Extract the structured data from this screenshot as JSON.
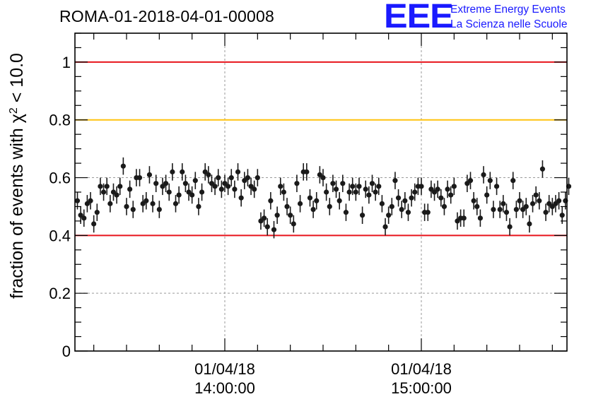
{
  "chart_data": {
    "type": "scatter",
    "title": "ROMA-01-2018-04-01-00008",
    "ylabel_main": "fraction of events with ",
    "ylabel_chi": "χ",
    "ylabel_sup": "2",
    "ylabel_tail": " < 10.0",
    "xlabel": "",
    "ylim": [
      0,
      1.1
    ],
    "x_unit": "minutes",
    "xlim": [
      -45,
      105
    ],
    "y_ticks": [
      "0",
      "0.2",
      "0.4",
      "0.6",
      "0.8",
      "1"
    ],
    "y_tick_values": [
      0,
      0.2,
      0.4,
      0.6,
      0.8,
      1.0
    ],
    "x_ticks": [
      {
        "x": 0,
        "date": "01/04/18",
        "time": "14:00:00"
      },
      {
        "x": 60,
        "date": "01/04/18",
        "time": "15:00:00"
      }
    ],
    "grid": true,
    "reference_lines": [
      {
        "y": 1.0,
        "color": "#e8141c"
      },
      {
        "y": 0.8,
        "color": "#ffc20e"
      },
      {
        "y": 0.4,
        "color": "#e8141c"
      }
    ],
    "marker_color": "#1a1a1a",
    "error": 0.03,
    "points": [
      {
        "x": -45,
        "y": 0.52
      },
      {
        "x": -44,
        "y": 0.47
      },
      {
        "x": -43,
        "y": 0.46
      },
      {
        "x": -42,
        "y": 0.51
      },
      {
        "x": -41,
        "y": 0.52
      },
      {
        "x": -40,
        "y": 0.44
      },
      {
        "x": -39,
        "y": 0.48
      },
      {
        "x": -38,
        "y": 0.57
      },
      {
        "x": -37,
        "y": 0.55
      },
      {
        "x": -36,
        "y": 0.57
      },
      {
        "x": -35,
        "y": 0.51
      },
      {
        "x": -34,
        "y": 0.55
      },
      {
        "x": -33,
        "y": 0.54
      },
      {
        "x": -32,
        "y": 0.57
      },
      {
        "x": -31,
        "y": 0.64
      },
      {
        "x": -30,
        "y": 0.5
      },
      {
        "x": -29,
        "y": 0.56
      },
      {
        "x": -28,
        "y": 0.49
      },
      {
        "x": -27,
        "y": 0.6
      },
      {
        "x": -26,
        "y": 0.6
      },
      {
        "x": -25,
        "y": 0.51
      },
      {
        "x": -24,
        "y": 0.52
      },
      {
        "x": -23,
        "y": 0.61
      },
      {
        "x": -22,
        "y": 0.51
      },
      {
        "x": -21,
        "y": 0.58
      },
      {
        "x": -20,
        "y": 0.49
      },
      {
        "x": -19,
        "y": 0.57
      },
      {
        "x": -18,
        "y": 0.58
      },
      {
        "x": -17,
        "y": 0.55
      },
      {
        "x": -16,
        "y": 0.62
      },
      {
        "x": -15,
        "y": 0.51
      },
      {
        "x": -14,
        "y": 0.54
      },
      {
        "x": -13,
        "y": 0.62
      },
      {
        "x": -12,
        "y": 0.58
      },
      {
        "x": -11,
        "y": 0.55
      },
      {
        "x": -10,
        "y": 0.54
      },
      {
        "x": -9,
        "y": 0.59
      },
      {
        "x": -8,
        "y": 0.5
      },
      {
        "x": -7,
        "y": 0.55
      },
      {
        "x": -6,
        "y": 0.62
      },
      {
        "x": -5,
        "y": 0.61
      },
      {
        "x": -4,
        "y": 0.58
      },
      {
        "x": -3,
        "y": 0.57
      },
      {
        "x": -2,
        "y": 0.6
      },
      {
        "x": -1,
        "y": 0.56
      },
      {
        "x": 0,
        "y": 0.58
      },
      {
        "x": 1,
        "y": 0.57
      },
      {
        "x": 2,
        "y": 0.6
      },
      {
        "x": 3,
        "y": 0.56
      },
      {
        "x": 4,
        "y": 0.62
      },
      {
        "x": 5,
        "y": 0.53
      },
      {
        "x": 6,
        "y": 0.59
      },
      {
        "x": 7,
        "y": 0.6
      },
      {
        "x": 8,
        "y": 0.57
      },
      {
        "x": 9,
        "y": 0.56
      },
      {
        "x": 10,
        "y": 0.6
      },
      {
        "x": 11,
        "y": 0.45
      },
      {
        "x": 12,
        "y": 0.46
      },
      {
        "x": 13,
        "y": 0.43
      },
      {
        "x": 14,
        "y": 0.52
      },
      {
        "x": 15,
        "y": 0.42
      },
      {
        "x": 16,
        "y": 0.47
      },
      {
        "x": 17,
        "y": 0.57
      },
      {
        "x": 18,
        "y": 0.55
      },
      {
        "x": 19,
        "y": 0.5
      },
      {
        "x": 20,
        "y": 0.47
      },
      {
        "x": 21,
        "y": 0.44
      },
      {
        "x": 22,
        "y": 0.58
      },
      {
        "x": 23,
        "y": 0.51
      },
      {
        "x": 24,
        "y": 0.62
      },
      {
        "x": 25,
        "y": 0.62
      },
      {
        "x": 26,
        "y": 0.53
      },
      {
        "x": 27,
        "y": 0.49
      },
      {
        "x": 28,
        "y": 0.52
      },
      {
        "x": 29,
        "y": 0.61
      },
      {
        "x": 30,
        "y": 0.6
      },
      {
        "x": 31,
        "y": 0.55
      },
      {
        "x": 32,
        "y": 0.5
      },
      {
        "x": 33,
        "y": 0.58
      },
      {
        "x": 34,
        "y": 0.56
      },
      {
        "x": 35,
        "y": 0.52
      },
      {
        "x": 36,
        "y": 0.58
      },
      {
        "x": 37,
        "y": 0.48
      },
      {
        "x": 38,
        "y": 0.55
      },
      {
        "x": 39,
        "y": 0.57
      },
      {
        "x": 40,
        "y": 0.55
      },
      {
        "x": 41,
        "y": 0.57
      },
      {
        "x": 42,
        "y": 0.47
      },
      {
        "x": 43,
        "y": 0.56
      },
      {
        "x": 44,
        "y": 0.54
      },
      {
        "x": 45,
        "y": 0.58
      },
      {
        "x": 46,
        "y": 0.55
      },
      {
        "x": 47,
        "y": 0.57
      },
      {
        "x": 48,
        "y": 0.51
      },
      {
        "x": 49,
        "y": 0.43
      },
      {
        "x": 50,
        "y": 0.47
      },
      {
        "x": 51,
        "y": 0.5
      },
      {
        "x": 52,
        "y": 0.59
      },
      {
        "x": 53,
        "y": 0.53
      },
      {
        "x": 54,
        "y": 0.49
      },
      {
        "x": 55,
        "y": 0.52
      },
      {
        "x": 56,
        "y": 0.48
      },
      {
        "x": 57,
        "y": 0.53
      },
      {
        "x": 58,
        "y": 0.55
      },
      {
        "x": 59,
        "y": 0.57
      },
      {
        "x": 60,
        "y": 0.57
      },
      {
        "x": 61,
        "y": 0.48
      },
      {
        "x": 62,
        "y": 0.48
      },
      {
        "x": 63,
        "y": 0.56
      },
      {
        "x": 64,
        "y": 0.55
      },
      {
        "x": 65,
        "y": 0.56
      },
      {
        "x": 66,
        "y": 0.53
      },
      {
        "x": 67,
        "y": 0.5
      },
      {
        "x": 68,
        "y": 0.56
      },
      {
        "x": 69,
        "y": 0.54
      },
      {
        "x": 70,
        "y": 0.57
      },
      {
        "x": 71,
        "y": 0.45
      },
      {
        "x": 72,
        "y": 0.46
      },
      {
        "x": 73,
        "y": 0.46
      },
      {
        "x": 74,
        "y": 0.58
      },
      {
        "x": 75,
        "y": 0.59
      },
      {
        "x": 76,
        "y": 0.52
      },
      {
        "x": 77,
        "y": 0.5
      },
      {
        "x": 78,
        "y": 0.46
      },
      {
        "x": 79,
        "y": 0.61
      },
      {
        "x": 80,
        "y": 0.54
      },
      {
        "x": 81,
        "y": 0.59
      },
      {
        "x": 82,
        "y": 0.49
      },
      {
        "x": 83,
        "y": 0.57
      },
      {
        "x": 84,
        "y": 0.49
      },
      {
        "x": 85,
        "y": 0.51
      },
      {
        "x": 86,
        "y": 0.48
      },
      {
        "x": 87,
        "y": 0.43
      },
      {
        "x": 88,
        "y": 0.59
      },
      {
        "x": 89,
        "y": 0.49
      },
      {
        "x": 90,
        "y": 0.52
      },
      {
        "x": 91,
        "y": 0.49
      },
      {
        "x": 92,
        "y": 0.5
      },
      {
        "x": 93,
        "y": 0.44
      },
      {
        "x": 94,
        "y": 0.51
      },
      {
        "x": 95,
        "y": 0.54
      },
      {
        "x": 96,
        "y": 0.52
      },
      {
        "x": 97,
        "y": 0.63
      },
      {
        "x": 98,
        "y": 0.48
      },
      {
        "x": 99,
        "y": 0.51
      },
      {
        "x": 100,
        "y": 0.5
      },
      {
        "x": 101,
        "y": 0.51
      },
      {
        "x": 102,
        "y": 0.52
      },
      {
        "x": 103,
        "y": 0.47
      },
      {
        "x": 104,
        "y": 0.52
      },
      {
        "x": 105,
        "y": 0.57
      }
    ]
  },
  "logo": {
    "mark": "EEE",
    "line1": "Extreme Energy Events",
    "line2": "La Scienza nelle Scuole",
    "color": "#1a1aff"
  }
}
